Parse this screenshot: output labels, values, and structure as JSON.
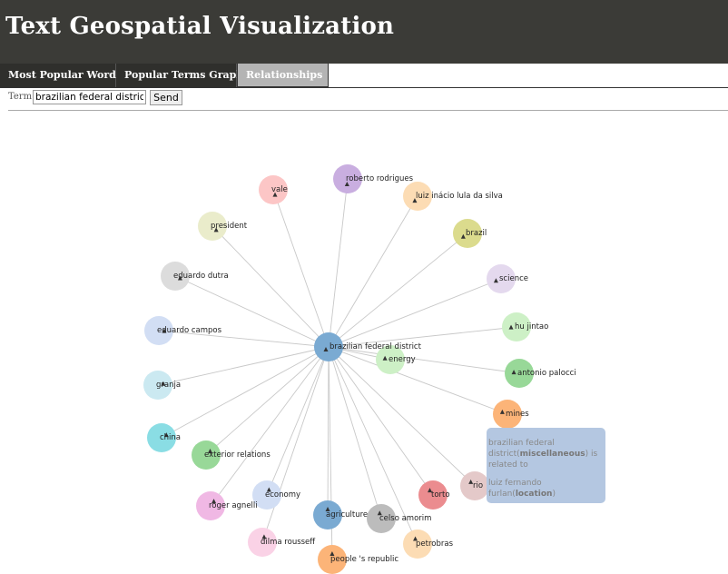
{
  "header": {
    "title": "Text Geospatial Visualization"
  },
  "tabs": [
    {
      "label": "Most Popular Words"
    },
    {
      "label": "Popular Terms Graph"
    },
    {
      "label": "Relationships"
    }
  ],
  "search": {
    "label": "Term:",
    "value": "brazilian federal district",
    "send_label": "Send"
  },
  "graph": {
    "center": {
      "label": "brazilian federal district",
      "color": "#7aaad2"
    },
    "nodes": [
      {
        "label": "roberto rodrigues",
        "color": "#c9aee0"
      },
      {
        "label": "vale",
        "color": "#fcc6c6"
      },
      {
        "label": "luiz inácio lula da silva",
        "color": "#fcdcb4"
      },
      {
        "label": "president",
        "color": "#eaeccb"
      },
      {
        "label": "brazil",
        "color": "#dbdb8d"
      },
      {
        "label": "eduardo dutra",
        "color": "#dcdcdc"
      },
      {
        "label": "science",
        "color": "#e4d9ee"
      },
      {
        "label": "eduardo campos",
        "color": "#d2def4"
      },
      {
        "label": "hu jintao",
        "color": "#cdf0c6"
      },
      {
        "label": "energy",
        "color": "#cdf0c6"
      },
      {
        "label": "antonio palocci",
        "color": "#98d898"
      },
      {
        "label": "granja",
        "color": "#cbe9f1"
      },
      {
        "label": "mines",
        "color": "#fcb478"
      },
      {
        "label": "china",
        "color": "#8adde4"
      },
      {
        "label": "exterior relations",
        "color": "#98d898"
      },
      {
        "label": "rio",
        "color": "#e4c9c9"
      },
      {
        "label": "torto",
        "color": "#eb8c8f"
      },
      {
        "label": "economy",
        "color": "#d2def4"
      },
      {
        "label": "roger agnelli",
        "color": "#f0b8e4"
      },
      {
        "label": "agriculture",
        "color": "#7aaad2"
      },
      {
        "label": "celso amorim",
        "color": "#bcbcbc"
      },
      {
        "label": "dilma rousseff",
        "color": "#fad2e6"
      },
      {
        "label": "petrobras",
        "color": "#fcdcb4"
      },
      {
        "label": "people 's republic",
        "color": "#fcb478"
      }
    ]
  },
  "tooltip": {
    "subject": "brazilian federal district",
    "subject_type": "miscellaneous",
    "relation": "is related to",
    "object": "luiz fernando furlan",
    "object_type": "location"
  }
}
